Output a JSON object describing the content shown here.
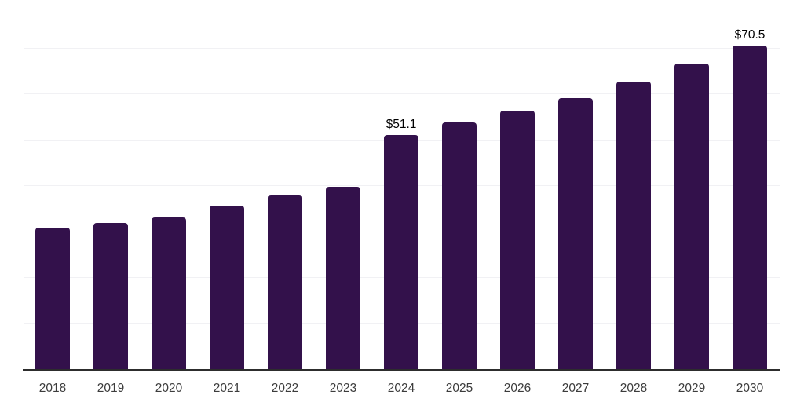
{
  "chart_data": {
    "type": "bar",
    "title": "",
    "xlabel": "",
    "ylabel": "",
    "categories": [
      "2018",
      "2019",
      "2020",
      "2021",
      "2022",
      "2023",
      "2024",
      "2025",
      "2026",
      "2027",
      "2028",
      "2029",
      "2030"
    ],
    "values": [
      30.8,
      31.9,
      33.0,
      35.6,
      38.0,
      39.7,
      51.1,
      53.7,
      56.4,
      59.1,
      62.7,
      66.6,
      70.5
    ],
    "annotations": [
      {
        "category": "2024",
        "text": "$51.1"
      },
      {
        "category": "2030",
        "text": "$70.5"
      }
    ],
    "ylim": [
      0,
      80
    ],
    "gridline_step": 10,
    "grid": true,
    "legend": false,
    "y_tick_labels_visible": false,
    "colors": {
      "bar": "#33114b",
      "grid": "#f1f1f4",
      "axis": "#2d2d2d",
      "tick_label": "#3c3c3c",
      "data_label": "#000000"
    }
  }
}
